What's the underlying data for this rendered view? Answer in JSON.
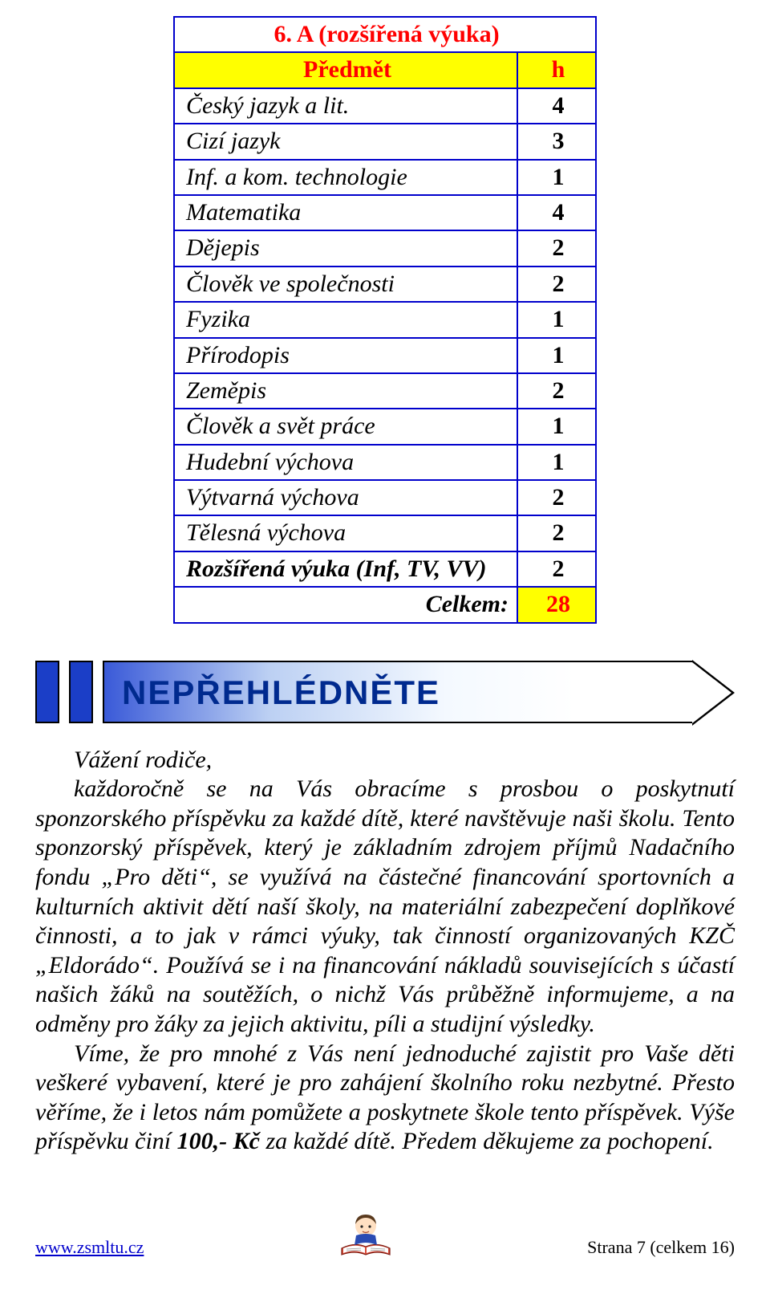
{
  "table": {
    "title": "6. A (rozšířená výuka)",
    "header_subject": "Předmět",
    "header_hours": "h",
    "rows": [
      {
        "subject": "Český jazyk a lit.",
        "hours": "4",
        "bold": false
      },
      {
        "subject": "Cizí jazyk",
        "hours": "3",
        "bold": false
      },
      {
        "subject": "Inf. a kom. technologie",
        "hours": "1",
        "bold": false
      },
      {
        "subject": "Matematika",
        "hours": "4",
        "bold": false
      },
      {
        "subject": "Dějepis",
        "hours": "2",
        "bold": false
      },
      {
        "subject": "Člověk ve společnosti",
        "hours": "2",
        "bold": false
      },
      {
        "subject": "Fyzika",
        "hours": "1",
        "bold": false
      },
      {
        "subject": "Přírodopis",
        "hours": "1",
        "bold": false
      },
      {
        "subject": "Zeměpis",
        "hours": "2",
        "bold": false
      },
      {
        "subject": "Člověk a svět práce",
        "hours": "1",
        "bold": false
      },
      {
        "subject": "Hudební výchova",
        "hours": "1",
        "bold": false
      },
      {
        "subject": "Výtvarná výchova",
        "hours": "2",
        "bold": false
      },
      {
        "subject": "Tělesná výchova",
        "hours": "2",
        "bold": false
      },
      {
        "subject": "Rozšířená výuka (Inf, TV, VV)",
        "hours": "2",
        "bold": true
      }
    ],
    "sum_label": "Celkem:",
    "sum_value": "28",
    "border_color": "#0000cc",
    "highlight_bg": "#ffff00",
    "highlight_fg": "#ff0000"
  },
  "banner": {
    "text": "NEPŘEHLÉDNĚTE",
    "block_color": "#1b3ec7"
  },
  "paragraphs": {
    "p1_a": "Vážení rodiče,",
    "p1_b": "každoročně se na Vás obracíme s prosbou o poskytnutí sponzorského příspěvku za každé dítě, které navštěvuje naši školu. Tento sponzorský příspěvek, který je základním zdrojem příjmů Nadačního fondu „Pro děti“, se využívá na částečné financování sportovních a kulturních aktivit dětí naší školy, na materiální zabezpečení doplňkové činnosti, a to jak v rámci výuky, tak činností organizovaných KZČ „Eldorádo“. Používá se i na financování nákladů souvisejících s účastí našich žáků na soutěžích, o nichž Vás průběžně informujeme, a na odměny pro žáky za jejich aktivitu, píli a studijní výsledky.",
    "p2_a": "Víme, že pro mnohé z Vás není jednoduché zajistit pro Vaše děti veškeré vybavení, které je pro zahájení školního roku nezbytné. Přesto věříme, že i letos nám pomůžete a poskytnete škole tento příspěvek. Výše příspěvku činí ",
    "p2_bold": "100,- Kč",
    "p2_b": " za každé dítě. Předem děkujeme za pochopení."
  },
  "footer": {
    "url": "www.zsmltu.cz",
    "page": "Strana 7 (celkem 16)"
  }
}
